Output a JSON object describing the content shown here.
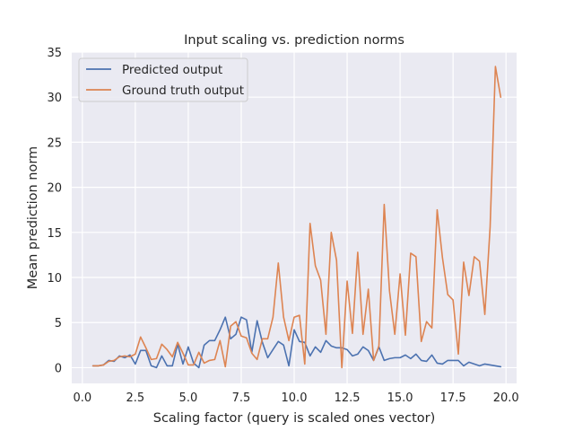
{
  "chart_data": {
    "type": "line",
    "title": "Input scaling vs. prediction norms",
    "xlabel": "Scaling factor (query is scaled ones vector)",
    "ylabel": "Mean prediction norm",
    "xlim": [
      -0.5,
      20.5
    ],
    "ylim": [
      -1.75,
      35
    ],
    "xticks": [
      0.0,
      2.5,
      5.0,
      7.5,
      10.0,
      12.5,
      15.0,
      17.5,
      20.0
    ],
    "xtick_labels": [
      "0.0",
      "2.5",
      "5.0",
      "7.5",
      "10.0",
      "12.5",
      "15.0",
      "17.5",
      "20.0"
    ],
    "yticks": [
      0,
      5,
      10,
      15,
      20,
      25,
      30,
      35
    ],
    "ytick_labels": [
      "0",
      "5",
      "10",
      "15",
      "20",
      "25",
      "30",
      "35"
    ],
    "grid": true,
    "legend_position": "top-left",
    "background": "#eaeaf2",
    "x": [
      0.5,
      0.75,
      1.0,
      1.25,
      1.5,
      1.75,
      2.0,
      2.25,
      2.5,
      2.75,
      3.0,
      3.25,
      3.5,
      3.75,
      4.0,
      4.25,
      4.5,
      4.75,
      5.0,
      5.25,
      5.5,
      5.75,
      6.0,
      6.25,
      6.5,
      6.75,
      7.0,
      7.25,
      7.5,
      7.75,
      8.0,
      8.25,
      8.5,
      8.75,
      9.0,
      9.25,
      9.5,
      9.75,
      10.0,
      10.25,
      10.5,
      10.75,
      11.0,
      11.25,
      11.5,
      11.75,
      12.0,
      12.25,
      12.5,
      12.75,
      13.0,
      13.25,
      13.5,
      13.75,
      14.0,
      14.25,
      14.5,
      14.75,
      15.0,
      15.25,
      15.5,
      15.75,
      16.0,
      16.25,
      16.5,
      16.75,
      17.0,
      17.25,
      17.5,
      17.75,
      18.0,
      18.25,
      18.5,
      18.75,
      19.0,
      19.25,
      19.5,
      19.75
    ],
    "series": [
      {
        "name": "Predicted output",
        "color": "#4c72b0",
        "values": [
          0.2,
          0.2,
          0.3,
          0.8,
          0.7,
          1.3,
          1.1,
          1.4,
          0.4,
          1.9,
          1.9,
          0.2,
          0.0,
          1.3,
          0.2,
          0.2,
          2.6,
          0.4,
          2.3,
          0.5,
          0.0,
          2.5,
          3.0,
          3.0,
          4.2,
          5.6,
          3.2,
          3.7,
          5.6,
          5.3,
          1.7,
          5.2,
          2.8,
          1.1,
          2.0,
          2.9,
          2.5,
          0.2,
          4.2,
          2.9,
          2.8,
          1.3,
          2.3,
          1.7,
          3.0,
          2.4,
          2.2,
          2.2,
          2.0,
          1.3,
          1.5,
          2.3,
          1.9,
          0.8,
          2.3,
          0.8,
          1.0,
          1.1,
          1.1,
          1.4,
          1.0,
          1.5,
          0.8,
          0.7,
          1.4,
          0.5,
          0.4,
          0.8,
          0.8,
          0.8,
          0.2,
          0.6,
          0.4,
          0.2,
          0.4,
          0.3,
          0.2,
          0.1
        ]
      },
      {
        "name": "Ground truth output",
        "color": "#dd8452",
        "values": [
          0.2,
          0.2,
          0.3,
          0.7,
          0.8,
          1.2,
          1.3,
          1.2,
          1.5,
          3.4,
          2.2,
          0.9,
          1.0,
          2.6,
          2.0,
          1.2,
          2.8,
          1.6,
          0.3,
          0.3,
          1.7,
          0.5,
          0.8,
          0.9,
          3.0,
          0.1,
          4.6,
          5.1,
          3.5,
          3.3,
          1.6,
          0.9,
          3.2,
          3.2,
          5.6,
          11.6,
          5.6,
          3.0,
          5.6,
          5.8,
          0.4,
          16.0,
          11.3,
          9.7,
          3.7,
          15.0,
          11.9,
          0.0,
          9.6,
          3.8,
          12.8,
          3.7,
          8.7,
          0.8,
          2.4,
          18.1,
          8.5,
          3.7,
          10.4,
          3.6,
          12.7,
          12.3,
          2.9,
          5.1,
          4.4,
          17.5,
          12.2,
          8.1,
          7.5,
          1.5,
          11.7,
          8.0,
          12.3,
          11.8,
          5.9,
          15.6,
          33.4,
          30.0
        ]
      }
    ]
  }
}
